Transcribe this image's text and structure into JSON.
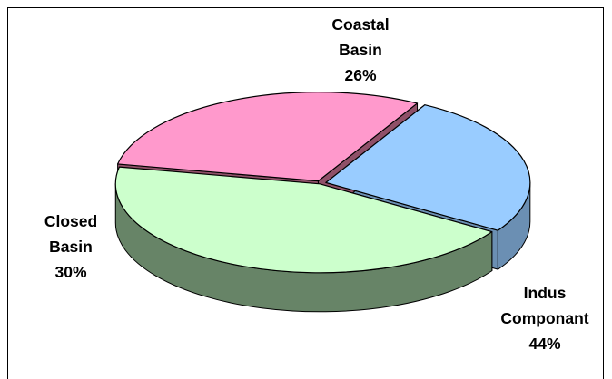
{
  "chart_data": {
    "type": "pie",
    "style": "3d-exploded",
    "slices": [
      {
        "label_lines": [
          "Coastal",
          "Basin"
        ],
        "percent_label": "26%",
        "value": 26,
        "color": "#99ccff",
        "side_color": "#6b8fb3"
      },
      {
        "label_lines": [
          "Indus",
          "Componant"
        ],
        "percent_label": "44%",
        "value": 44,
        "color": "#ccffcc",
        "side_color": "#678467"
      },
      {
        "label_lines": [
          "Closed",
          "Basin"
        ],
        "percent_label": "30%",
        "value": 30,
        "color": "#ff99cc",
        "side_color": "#8f5068"
      }
    ]
  }
}
